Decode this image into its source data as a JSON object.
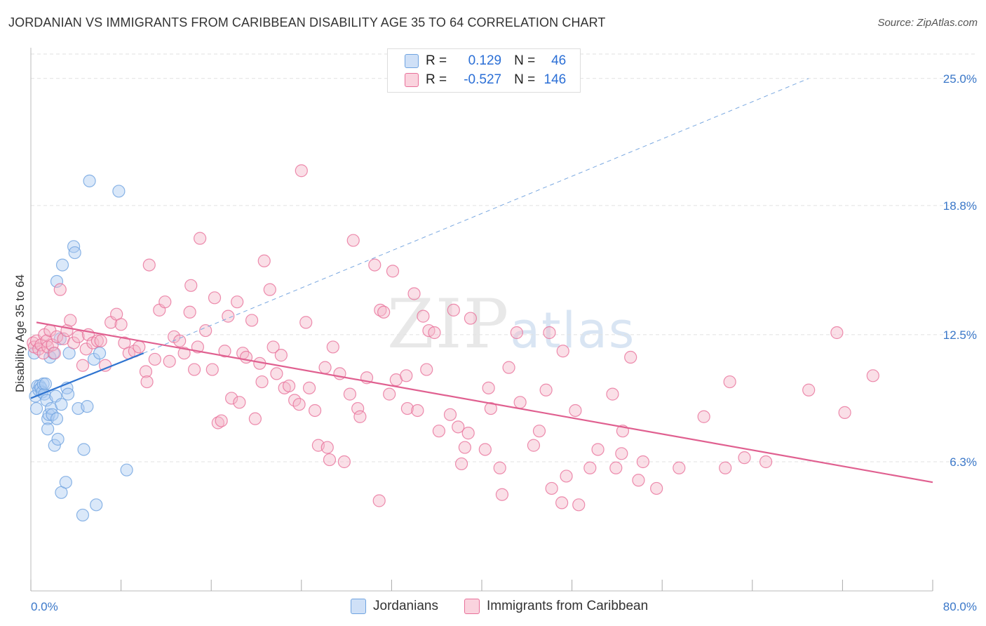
{
  "header": {
    "title": "JORDANIAN VS IMMIGRANTS FROM CARIBBEAN DISABILITY AGE 35 TO 64 CORRELATION CHART",
    "source": "Source: ZipAtlas.com"
  },
  "watermark": {
    "zip": "ZIP",
    "atlas": "atlas"
  },
  "legend": {
    "series": [
      {
        "r_label": "R =",
        "r_value": "0.129",
        "n_label": "N =",
        "n_value": "46",
        "color": "#a8c8f0"
      },
      {
        "r_label": "R =",
        "r_value": "-0.527",
        "n_label": "N =",
        "n_value": "146",
        "color": "#f5b8c9"
      }
    ]
  },
  "bottom_legend": [
    "Jordanians",
    "Immigrants from Caribbean"
  ],
  "chart_data": {
    "type": "scatter",
    "title": "JORDANIAN VS IMMIGRANTS FROM CARIBBEAN DISABILITY AGE 35 TO 64 CORRELATION CHART",
    "xlabel": "",
    "ylabel": "Disability Age 35 to 64",
    "xlim": [
      0,
      80
    ],
    "ylim": [
      0,
      26.5
    ],
    "x_tick_labels": [
      "0.0%",
      "80.0%"
    ],
    "y_ticks": [
      6.3,
      12.5,
      18.8,
      25.0
    ],
    "y_tick_labels": [
      "6.3%",
      "12.5%",
      "18.8%",
      "25.0%"
    ],
    "grid": true,
    "legend_position": "top-center",
    "series": [
      {
        "name": "Jordanians",
        "color": "#6fa3e0",
        "fill": "#aecbf2",
        "trend": {
          "x": [
            0,
            10
          ],
          "y": [
            9.4,
            11.6
          ]
        },
        "trend_extended": {
          "x": [
            10,
            69
          ],
          "y": [
            11.6,
            25.0
          ]
        },
        "points": [
          [
            0.3,
            11.6
          ],
          [
            0.4,
            9.5
          ],
          [
            0.5,
            8.9
          ],
          [
            0.6,
            10.0
          ],
          [
            0.7,
            9.8
          ],
          [
            0.8,
            10.0
          ],
          [
            0.9,
            9.9
          ],
          [
            1.0,
            9.7
          ],
          [
            1.1,
            10.1
          ],
          [
            1.2,
            9.6
          ],
          [
            1.3,
            10.1
          ],
          [
            1.4,
            9.3
          ],
          [
            1.5,
            8.4
          ],
          [
            1.5,
            7.9
          ],
          [
            1.6,
            8.6
          ],
          [
            1.7,
            11.4
          ],
          [
            1.8,
            8.9
          ],
          [
            1.9,
            8.6
          ],
          [
            2.0,
            11.6
          ],
          [
            2.1,
            7.1
          ],
          [
            2.2,
            9.5
          ],
          [
            2.3,
            15.1
          ],
          [
            2.3,
            8.4
          ],
          [
            2.4,
            7.4
          ],
          [
            2.6,
            12.3
          ],
          [
            2.7,
            9.1
          ],
          [
            2.7,
            4.8
          ],
          [
            2.8,
            15.9
          ],
          [
            3.1,
            5.3
          ],
          [
            3.2,
            9.9
          ],
          [
            3.3,
            9.6
          ],
          [
            3.4,
            11.6
          ],
          [
            3.8,
            16.8
          ],
          [
            3.9,
            16.5
          ],
          [
            4.2,
            8.9
          ],
          [
            4.6,
            3.7
          ],
          [
            4.7,
            6.9
          ],
          [
            5.0,
            9.0
          ],
          [
            5.2,
            20.0
          ],
          [
            5.6,
            11.3
          ],
          [
            5.8,
            4.2
          ],
          [
            6.1,
            11.6
          ],
          [
            7.8,
            19.5
          ],
          [
            8.5,
            5.9
          ]
        ]
      },
      {
        "name": "Immigrants from Caribbean",
        "color": "#e8709a",
        "fill": "#f5b8c9",
        "trend": {
          "x": [
            0.5,
            80
          ],
          "y": [
            13.1,
            5.3
          ]
        },
        "points": [
          [
            0.2,
            12.1
          ],
          [
            0.3,
            11.9
          ],
          [
            0.5,
            12.2
          ],
          [
            0.7,
            11.8
          ],
          [
            0.9,
            12.0
          ],
          [
            1.1,
            11.6
          ],
          [
            1.2,
            12.5
          ],
          [
            1.4,
            12.2
          ],
          [
            1.5,
            11.9
          ],
          [
            1.7,
            12.7
          ],
          [
            1.9,
            12.0
          ],
          [
            2.1,
            11.6
          ],
          [
            2.3,
            12.4
          ],
          [
            2.6,
            14.7
          ],
          [
            2.9,
            12.3
          ],
          [
            3.2,
            12.7
          ],
          [
            3.5,
            13.2
          ],
          [
            3.8,
            12.1
          ],
          [
            4.2,
            12.4
          ],
          [
            4.6,
            11.0
          ],
          [
            4.9,
            11.8
          ],
          [
            5.1,
            12.5
          ],
          [
            5.5,
            12.1
          ],
          [
            5.9,
            12.2
          ],
          [
            6.2,
            12.2
          ],
          [
            6.6,
            11.0
          ],
          [
            7.1,
            13.1
          ],
          [
            7.6,
            13.5
          ],
          [
            8.0,
            13.0
          ],
          [
            8.3,
            12.1
          ],
          [
            8.7,
            11.6
          ],
          [
            9.2,
            11.7
          ],
          [
            9.6,
            11.9
          ],
          [
            10.2,
            10.7
          ],
          [
            10.3,
            10.2
          ],
          [
            10.5,
            15.9
          ],
          [
            11.0,
            11.3
          ],
          [
            11.4,
            13.7
          ],
          [
            11.9,
            14.1
          ],
          [
            12.3,
            11.2
          ],
          [
            12.7,
            12.4
          ],
          [
            13.2,
            12.2
          ],
          [
            13.6,
            11.6
          ],
          [
            14.1,
            13.6
          ],
          [
            14.2,
            14.9
          ],
          [
            14.5,
            10.8
          ],
          [
            14.8,
            11.9
          ],
          [
            15.0,
            17.2
          ],
          [
            15.5,
            12.7
          ],
          [
            16.1,
            10.8
          ],
          [
            16.3,
            14.3
          ],
          [
            16.6,
            8.2
          ],
          [
            16.9,
            8.3
          ],
          [
            17.2,
            11.7
          ],
          [
            17.5,
            13.4
          ],
          [
            17.8,
            9.4
          ],
          [
            18.3,
            14.1
          ],
          [
            18.5,
            9.2
          ],
          [
            18.8,
            11.6
          ],
          [
            19.1,
            11.4
          ],
          [
            19.6,
            13.2
          ],
          [
            19.9,
            8.4
          ],
          [
            20.3,
            11.1
          ],
          [
            20.5,
            10.2
          ],
          [
            20.7,
            16.1
          ],
          [
            21.2,
            14.7
          ],
          [
            21.5,
            11.9
          ],
          [
            21.8,
            10.6
          ],
          [
            22.2,
            11.5
          ],
          [
            22.5,
            9.9
          ],
          [
            22.9,
            10.0
          ],
          [
            23.4,
            9.3
          ],
          [
            23.8,
            9.1
          ],
          [
            24.0,
            20.5
          ],
          [
            24.4,
            13.1
          ],
          [
            24.7,
            9.9
          ],
          [
            25.2,
            8.8
          ],
          [
            25.5,
            7.1
          ],
          [
            26.1,
            10.9
          ],
          [
            26.3,
            7.0
          ],
          [
            26.5,
            6.4
          ],
          [
            26.8,
            11.9
          ],
          [
            27.4,
            10.6
          ],
          [
            27.8,
            6.3
          ],
          [
            28.3,
            9.6
          ],
          [
            28.6,
            17.1
          ],
          [
            29.0,
            8.9
          ],
          [
            29.2,
            8.5
          ],
          [
            29.8,
            10.4
          ],
          [
            30.5,
            15.9
          ],
          [
            30.9,
            4.4
          ],
          [
            31.0,
            13.7
          ],
          [
            31.3,
            13.6
          ],
          [
            31.8,
            9.6
          ],
          [
            32.1,
            15.6
          ],
          [
            32.4,
            10.3
          ],
          [
            33.3,
            10.5
          ],
          [
            33.4,
            8.9
          ],
          [
            34.0,
            14.5
          ],
          [
            34.3,
            8.8
          ],
          [
            34.8,
            13.4
          ],
          [
            35.1,
            10.8
          ],
          [
            35.3,
            12.7
          ],
          [
            35.8,
            12.6
          ],
          [
            36.2,
            7.8
          ],
          [
            37.2,
            8.6
          ],
          [
            37.5,
            13.7
          ],
          [
            37.9,
            8.0
          ],
          [
            38.2,
            6.2
          ],
          [
            38.5,
            7.0
          ],
          [
            38.8,
            7.7
          ],
          [
            39.0,
            13.3
          ],
          [
            40.3,
            6.9
          ],
          [
            40.6,
            9.9
          ],
          [
            40.8,
            8.9
          ],
          [
            41.6,
            6.0
          ],
          [
            41.8,
            4.7
          ],
          [
            42.4,
            10.9
          ],
          [
            43.1,
            12.6
          ],
          [
            43.4,
            9.2
          ],
          [
            44.6,
            7.1
          ],
          [
            45.1,
            7.8
          ],
          [
            45.7,
            9.8
          ],
          [
            46.0,
            12.6
          ],
          [
            46.2,
            5.0
          ],
          [
            47.1,
            4.3
          ],
          [
            47.2,
            11.7
          ],
          [
            47.5,
            5.6
          ],
          [
            48.3,
            8.8
          ],
          [
            48.6,
            4.2
          ],
          [
            49.6,
            6.0
          ],
          [
            50.3,
            6.9
          ],
          [
            51.6,
            9.6
          ],
          [
            51.9,
            6.0
          ],
          [
            52.4,
            6.7
          ],
          [
            52.5,
            7.8
          ],
          [
            53.2,
            11.4
          ],
          [
            53.9,
            5.4
          ],
          [
            54.3,
            6.3
          ],
          [
            55.5,
            5.0
          ],
          [
            57.5,
            6.0
          ],
          [
            59.7,
            8.5
          ],
          [
            61.6,
            6.0
          ],
          [
            62.0,
            10.2
          ],
          [
            63.3,
            6.5
          ],
          [
            65.2,
            6.3
          ],
          [
            69.0,
            9.8
          ],
          [
            71.5,
            12.6
          ],
          [
            72.2,
            8.7
          ],
          [
            74.7,
            10.5
          ]
        ]
      }
    ]
  }
}
